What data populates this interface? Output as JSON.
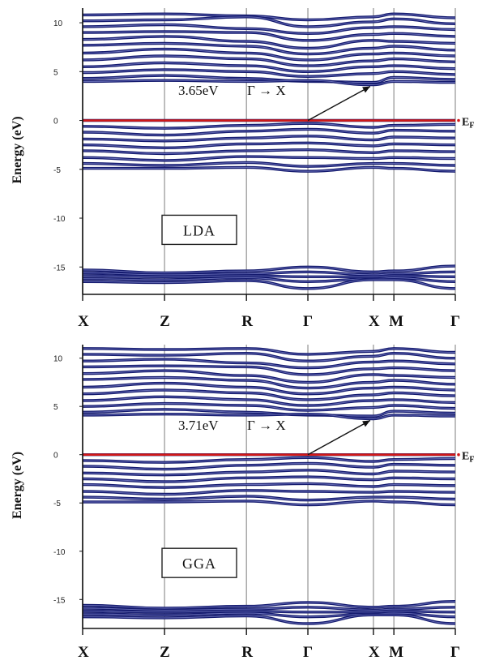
{
  "chart_data": [
    {
      "type": "line",
      "panel": "LDA",
      "method_label": "LDA",
      "ylabel": "Energy (eV)",
      "ylim": [
        -17.8,
        11.5
      ],
      "yticks": [
        10,
        5,
        0,
        -5,
        -10,
        -15
      ],
      "ytick_labels": [
        "10",
        "5",
        "0",
        "-5",
        "-10",
        "-15"
      ],
      "kpoints": [
        "X",
        "Z",
        "R",
        "Γ",
        "X",
        "M",
        "Γ"
      ],
      "kpoint_positions": [
        0,
        1,
        2,
        2.75,
        3.55,
        3.8,
        4.55
      ],
      "fermi_level": 0,
      "fermi_label_main": "E",
      "fermi_label_sub": "F",
      "gap_label": "3.65eV",
      "transition_label": "Γ → X",
      "conduction_band_min": 3.65,
      "valence_band_max": 0,
      "bands": {
        "conduction": [
          [
            10.8,
            10.9,
            10.7,
            10.3,
            10.6,
            10.9,
            10.5
          ],
          [
            10.2,
            10.3,
            10.6,
            9.6,
            10.1,
            10.4,
            9.9
          ],
          [
            9.6,
            9.8,
            9.4,
            8.9,
            9.5,
            9.6,
            9.3
          ],
          [
            9.0,
            9.1,
            9.0,
            8.2,
            8.8,
            8.9,
            8.6
          ],
          [
            8.3,
            8.6,
            8.1,
            7.4,
            8.2,
            8.1,
            7.9
          ],
          [
            7.7,
            7.9,
            7.6,
            6.8,
            7.4,
            7.6,
            7.2
          ],
          [
            6.9,
            7.3,
            6.9,
            6.2,
            6.8,
            6.9,
            6.6
          ],
          [
            6.2,
            6.6,
            6.3,
            5.6,
            6.1,
            6.3,
            6.0
          ],
          [
            5.5,
            5.9,
            5.6,
            5.0,
            5.5,
            5.6,
            5.3
          ],
          [
            4.9,
            5.2,
            5.0,
            4.5,
            4.8,
            5.0,
            4.7
          ],
          [
            4.3,
            4.6,
            4.3,
            4.0,
            3.9,
            4.4,
            4.2
          ],
          [
            4.0,
            4.1,
            4.0,
            4.1,
            3.65,
            4.0,
            3.9
          ]
        ],
        "valence": [
          [
            0.0,
            0.0,
            0.0,
            0.0,
            0.0,
            0.0,
            0.0
          ],
          [
            -0.6,
            -0.8,
            -0.5,
            -0.3,
            -0.7,
            -0.5,
            -0.4
          ],
          [
            -1.2,
            -1.5,
            -1.1,
            -0.9,
            -1.3,
            -1.0,
            -1.1
          ],
          [
            -1.9,
            -2.1,
            -1.8,
            -1.6,
            -2.0,
            -1.7,
            -1.8
          ],
          [
            -2.5,
            -2.8,
            -2.4,
            -2.3,
            -2.6,
            -2.4,
            -2.5
          ],
          [
            -3.1,
            -3.4,
            -3.1,
            -3.0,
            -3.3,
            -3.1,
            -3.2
          ],
          [
            -3.8,
            -4.1,
            -3.7,
            -3.8,
            -3.9,
            -3.8,
            -3.9
          ],
          [
            -4.4,
            -4.6,
            -4.3,
            -4.7,
            -4.4,
            -4.4,
            -4.6
          ],
          [
            -4.9,
            -4.9,
            -4.8,
            -5.2,
            -4.8,
            -4.9,
            -5.2
          ]
        ],
        "semicore": [
          [
            -15.3,
            -15.6,
            -15.4,
            -15.0,
            -15.5,
            -15.4,
            -14.9
          ],
          [
            -15.6,
            -15.8,
            -15.7,
            -15.5,
            -15.8,
            -15.7,
            -15.5
          ],
          [
            -15.9,
            -16.0,
            -15.9,
            -16.0,
            -16.0,
            -15.9,
            -16.0
          ],
          [
            -16.2,
            -16.3,
            -16.1,
            -16.5,
            -16.2,
            -16.1,
            -16.5
          ],
          [
            -16.5,
            -16.6,
            -16.4,
            -17.2,
            -16.3,
            -16.3,
            -17.2
          ]
        ]
      }
    },
    {
      "type": "line",
      "panel": "GGA",
      "method_label": "GGA",
      "ylabel": "Energy (eV)",
      "ylim": [
        -18.0,
        11.4
      ],
      "yticks": [
        10,
        5,
        0,
        -5,
        -10,
        -15
      ],
      "ytick_labels": [
        "10",
        "5",
        "0",
        "-5",
        "-10",
        "-15"
      ],
      "kpoints": [
        "X",
        "Z",
        "R",
        "Γ",
        "X",
        "M",
        "Γ"
      ],
      "kpoint_positions": [
        0,
        1,
        2,
        2.75,
        3.55,
        3.8,
        4.55
      ],
      "fermi_level": 0,
      "fermi_label_main": "E",
      "fermi_label_sub": "F",
      "gap_label": "3.71eV",
      "transition_label": "Γ → X",
      "conduction_band_min": 3.71,
      "valence_band_max": 0,
      "bands": {
        "conduction": [
          [
            11.0,
            10.9,
            11.0,
            10.4,
            10.7,
            11.0,
            10.6
          ],
          [
            10.4,
            10.3,
            10.5,
            9.7,
            10.2,
            10.5,
            10.0
          ],
          [
            9.7,
            9.9,
            9.5,
            9.0,
            9.6,
            9.7,
            9.4
          ],
          [
            9.1,
            9.2,
            9.1,
            8.3,
            8.9,
            9.0,
            8.7
          ],
          [
            8.4,
            8.7,
            8.2,
            7.5,
            8.3,
            8.2,
            8.0
          ],
          [
            7.8,
            8.0,
            7.7,
            6.9,
            7.5,
            7.7,
            7.3
          ],
          [
            7.0,
            7.4,
            7.0,
            6.3,
            6.9,
            7.0,
            6.7
          ],
          [
            6.3,
            6.7,
            6.4,
            5.7,
            6.2,
            6.4,
            6.1
          ],
          [
            5.6,
            6.0,
            5.7,
            5.1,
            5.6,
            5.7,
            5.4
          ],
          [
            5.0,
            5.3,
            5.1,
            4.6,
            4.9,
            5.1,
            4.8
          ],
          [
            4.4,
            4.7,
            4.4,
            4.1,
            4.0,
            4.5,
            4.3
          ],
          [
            4.1,
            4.2,
            4.1,
            4.2,
            3.71,
            4.1,
            4.0
          ]
        ],
        "valence": [
          [
            0.0,
            0.0,
            0.0,
            0.0,
            0.0,
            0.0,
            0.0
          ],
          [
            -0.6,
            -0.8,
            -0.5,
            -0.3,
            -0.7,
            -0.5,
            -0.4
          ],
          [
            -1.2,
            -1.5,
            -1.1,
            -0.9,
            -1.3,
            -1.0,
            -1.1
          ],
          [
            -1.9,
            -2.1,
            -1.8,
            -1.6,
            -2.0,
            -1.7,
            -1.8
          ],
          [
            -2.5,
            -2.8,
            -2.4,
            -2.3,
            -2.6,
            -2.4,
            -2.5
          ],
          [
            -3.1,
            -3.4,
            -3.1,
            -3.0,
            -3.3,
            -3.1,
            -3.2
          ],
          [
            -3.8,
            -4.1,
            -3.7,
            -3.8,
            -3.9,
            -3.8,
            -3.9
          ],
          [
            -4.4,
            -4.6,
            -4.3,
            -4.7,
            -4.4,
            -4.4,
            -4.6
          ],
          [
            -4.9,
            -4.9,
            -4.8,
            -5.2,
            -4.8,
            -4.9,
            -5.2
          ]
        ],
        "semicore": [
          [
            -15.6,
            -15.9,
            -15.7,
            -15.3,
            -15.8,
            -15.7,
            -15.2
          ],
          [
            -15.9,
            -16.1,
            -16.0,
            -15.8,
            -16.1,
            -16.0,
            -15.8
          ],
          [
            -16.2,
            -16.3,
            -16.2,
            -16.3,
            -16.3,
            -16.2,
            -16.3
          ],
          [
            -16.5,
            -16.6,
            -16.4,
            -16.8,
            -16.5,
            -16.4,
            -16.8
          ],
          [
            -16.8,
            -16.9,
            -16.7,
            -17.5,
            -16.6,
            -16.6,
            -17.5
          ]
        ]
      }
    }
  ],
  "colors": {
    "band": "#141a6e",
    "band_highlight": "#8f95d8",
    "fermi": "#d01818",
    "kline": "#9a9a9a",
    "axis": "#111111",
    "arrow": "#111111"
  }
}
